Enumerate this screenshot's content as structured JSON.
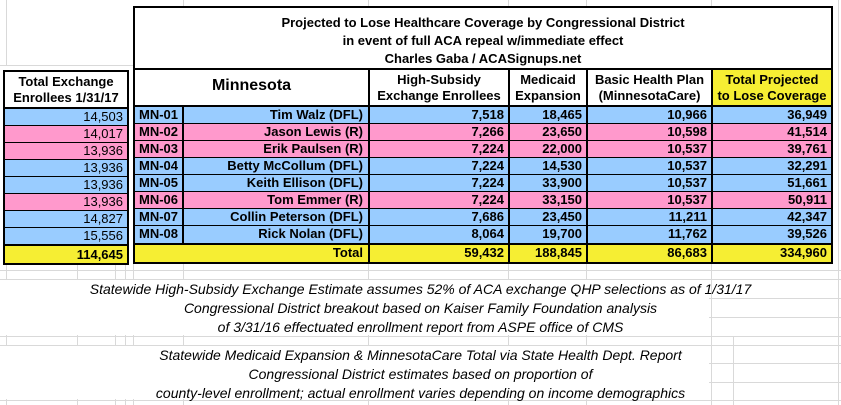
{
  "colors": {
    "dfl_row": "#99CCFF",
    "gop_row": "#FF99CC",
    "total_yellow": "#F6EE33",
    "border": "#000000",
    "gridline": "#D9D9D9"
  },
  "title": {
    "lines": [
      "Projected to Lose Healthcare Coverage by Congressional District",
      "in event of full ACA repeal w/immediate effect",
      "Charles Gaba / ACASignups.net"
    ]
  },
  "left_block": {
    "header_lines": [
      "Total Exchange",
      "Enrollees 1/31/17"
    ],
    "total": "114,645"
  },
  "table": {
    "state_header": "Minnesota",
    "col_headers": {
      "high_subsidy": [
        "High-Subsidy",
        "Exchange Enrollees"
      ],
      "medicaid": [
        "Medicaid",
        "Expansion"
      ],
      "bhp": [
        "Basic Health Plan",
        "(MinnesotaCare)"
      ],
      "total": [
        "Total Projected",
        "to Lose Coverage"
      ]
    },
    "rows": [
      {
        "district": "MN-01",
        "rep": "Tim Walz (DFL)",
        "party": "dfl",
        "exchange_total": "14,503",
        "high_subsidy": "7,518",
        "medicaid": "18,465",
        "bhp": "10,966",
        "total": "36,949"
      },
      {
        "district": "MN-02",
        "rep": "Jason Lewis (R)",
        "party": "gop",
        "exchange_total": "14,017",
        "high_subsidy": "7,266",
        "medicaid": "23,650",
        "bhp": "10,598",
        "total": "41,514"
      },
      {
        "district": "MN-03",
        "rep": "Erik Paulsen (R)",
        "party": "gop",
        "exchange_total": "13,936",
        "high_subsidy": "7,224",
        "medicaid": "22,000",
        "bhp": "10,537",
        "total": "39,761"
      },
      {
        "district": "MN-04",
        "rep": "Betty McCollum (DFL)",
        "party": "dfl",
        "exchange_total": "13,936",
        "high_subsidy": "7,224",
        "medicaid": "14,530",
        "bhp": "10,537",
        "total": "32,291"
      },
      {
        "district": "MN-05",
        "rep": "Keith Ellison (DFL)",
        "party": "dfl",
        "exchange_total": "13,936",
        "high_subsidy": "7,224",
        "medicaid": "33,900",
        "bhp": "10,537",
        "total": "51,661"
      },
      {
        "district": "MN-06",
        "rep": "Tom Emmer (R)",
        "party": "gop",
        "exchange_total": "13,936",
        "high_subsidy": "7,224",
        "medicaid": "33,150",
        "bhp": "10,537",
        "total": "50,911"
      },
      {
        "district": "MN-07",
        "rep": "Collin Peterson (DFL)",
        "party": "dfl",
        "exchange_total": "14,827",
        "high_subsidy": "7,686",
        "medicaid": "23,450",
        "bhp": "11,211",
        "total": "42,347"
      },
      {
        "district": "MN-08",
        "rep": "Rick Nolan (DFL)",
        "party": "dfl",
        "exchange_total": "15,556",
        "high_subsidy": "8,064",
        "medicaid": "19,700",
        "bhp": "11,762",
        "total": "39,526"
      }
    ],
    "total_row": {
      "label": "Total",
      "high_subsidy": "59,432",
      "medicaid": "188,845",
      "bhp": "86,683",
      "total": "334,960"
    }
  },
  "notes": [
    {
      "lines": [
        "Statewide High-Subsidy Exchange Estimate assumes 52% of ACA exchange QHP selections as of 1/31/17",
        "Congressional District breakout based on Kaiser Family Foundation analysis",
        "of 3/31/16 effectuated enrollment report from ASPE office of CMS"
      ]
    },
    {
      "lines": [
        "Statewide Medicaid Expansion & MinnesotaCare Total via State Health Dept. Report",
        "Congressional District estimates based on proportion of",
        "county-level enrollment; actual enrollment varies depending on income demographics"
      ]
    }
  ]
}
